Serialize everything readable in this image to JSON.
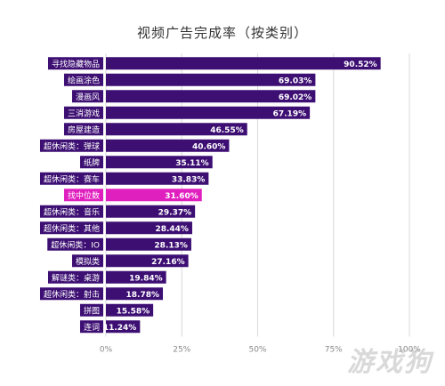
{
  "chart_data": {
    "type": "bar",
    "orientation": "horizontal",
    "title": "视频广告完成率（按类别）",
    "categories": [
      "寻找隐藏物品",
      "绘画涂色",
      "漫画风",
      "三消游戏",
      "房屋建造",
      "超休闲类：弹球",
      "纸牌",
      "超休闲类：赛车",
      "找中位数",
      "超休闲类：音乐",
      "超休闲类：其他",
      "超休闲类：IO",
      "模拟类",
      "解谜类：桌游",
      "超休闲类：射击",
      "拼图",
      "连词"
    ],
    "values": [
      90.52,
      69.03,
      69.02,
      67.19,
      46.55,
      40.6,
      35.11,
      33.83,
      31.6,
      29.37,
      28.44,
      28.13,
      27.16,
      19.84,
      18.78,
      15.58,
      11.24
    ],
    "value_labels": [
      "90.52%",
      "69.03%",
      "69.02%",
      "67.19%",
      "46.55%",
      "40.60%",
      "35.11%",
      "33.83%",
      "31.60%",
      "29.37%",
      "28.44%",
      "28.13%",
      "27.16%",
      "19.84%",
      "18.78%",
      "15.58%",
      "11.24%"
    ],
    "highlight_index": 8,
    "xlim": [
      0,
      100
    ],
    "x_ticks": [
      0,
      25,
      50,
      75,
      100
    ],
    "x_tick_labels": [
      "0%",
      "25%",
      "50%",
      "75%",
      "100%"
    ],
    "grid": true,
    "colors": {
      "bar": "#3d0f73",
      "highlight": "#e01fbf",
      "label_box": "#3d0f73",
      "highlight_label_box": "#e01fbf",
      "grid": "#d9d9d9",
      "tick_text": "#888888"
    }
  },
  "watermark": "游戏狗"
}
